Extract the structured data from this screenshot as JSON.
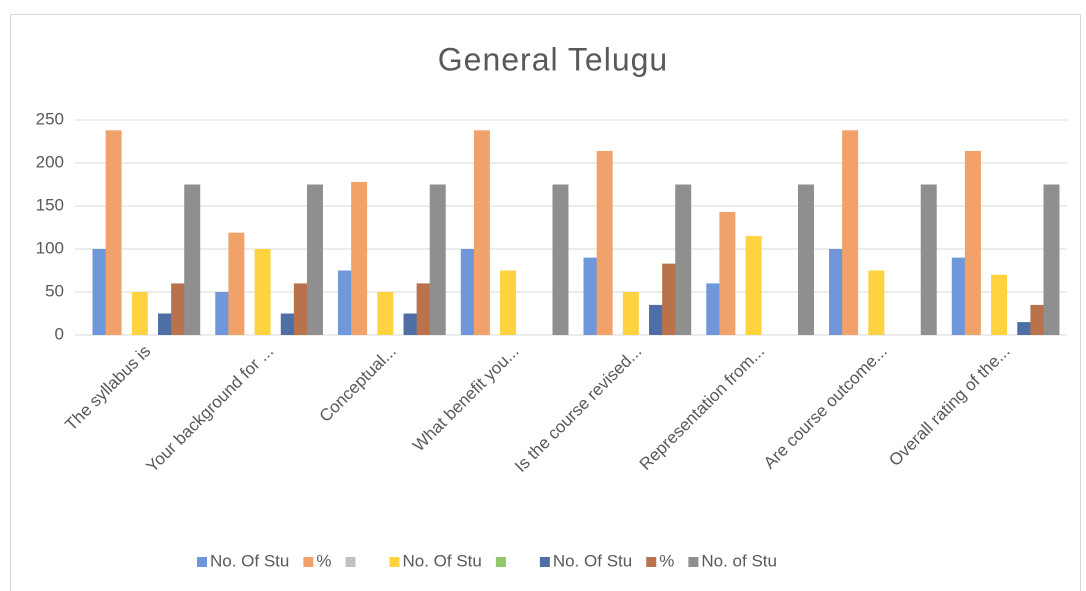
{
  "chart_data": {
    "type": "bar",
    "title": "General Telugu",
    "categories": [
      "The syllabus is",
      "Your background for ...",
      "Conceptual...",
      "What benefit you...",
      "Is the course revised...",
      "Representation from...",
      "Are course outcome...",
      "Overall rating of the..."
    ],
    "series": [
      {
        "name": "No. Of Stu",
        "color": "#7097d9",
        "values": [
          100,
          50,
          75,
          100,
          90,
          60,
          100,
          90
        ]
      },
      {
        "name": "%",
        "color": "#f1a26b",
        "values": [
          238,
          119,
          178,
          238,
          214,
          143,
          238,
          214
        ]
      },
      {
        "name": null,
        "color": "#c0c0c0",
        "values": [
          null,
          null,
          null,
          null,
          null,
          null,
          null,
          null
        ]
      },
      {
        "name": "No. Of Stu",
        "color": "#ffd23f",
        "values": [
          50,
          100,
          50,
          75,
          50,
          115,
          75,
          70
        ]
      },
      {
        "name": null,
        "color": "#93c56d",
        "values": [
          null,
          null,
          null,
          null,
          null,
          null,
          null,
          null
        ]
      },
      {
        "name": "No. Of Stu",
        "color": "#4f6ea3",
        "values": [
          25,
          25,
          25,
          null,
          35,
          null,
          null,
          15
        ]
      },
      {
        "name": "%",
        "color": "#b8734c",
        "values": [
          60,
          60,
          60,
          null,
          83,
          null,
          null,
          35
        ]
      },
      {
        "name": "No. of Stu",
        "color": "#8f8f8f",
        "values": [
          175,
          175,
          175,
          175,
          175,
          175,
          175,
          175
        ]
      }
    ],
    "ylim": [
      0,
      250
    ],
    "yticks": [
      0,
      50,
      100,
      150,
      200,
      250
    ],
    "grid": true,
    "legend": "bottom"
  }
}
